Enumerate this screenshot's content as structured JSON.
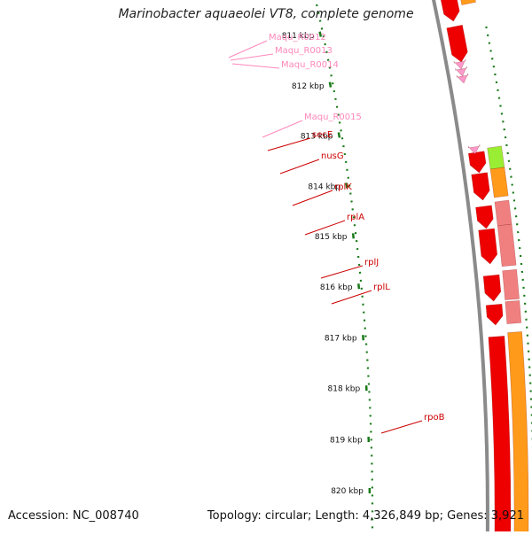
{
  "title": "Marinobacter aquaeolei VT8, complete genome",
  "accession": "Accession: NC_008740",
  "summary": "Topology: circular; Length: 4,326,849 bp; Genes: 3,921",
  "colors": {
    "backbone": "#8a8a8a",
    "ruler": "#1a7a1a",
    "gene": "#ee0000",
    "gene_pale": "#f08080",
    "trna": "#ff99cc",
    "label_gene": "#cc0000",
    "label_trna": "#ff88bb",
    "orange": "#ff9a1a",
    "green": "#99ee33"
  },
  "ruler_labels": [
    {
      "name": "tick-811",
      "text": "811 kbp"
    },
    {
      "name": "tick-812",
      "text": "812 kbp"
    },
    {
      "name": "tick-813",
      "text": "813 kbp"
    },
    {
      "name": "tick-814",
      "text": "814 kbp"
    },
    {
      "name": "tick-815",
      "text": "815 kbp"
    },
    {
      "name": "tick-816",
      "text": "816 kbp"
    },
    {
      "name": "tick-817",
      "text": "817 kbp"
    },
    {
      "name": "tick-818",
      "text": "818 kbp"
    },
    {
      "name": "tick-819",
      "text": "819 kbp"
    },
    {
      "name": "tick-820",
      "text": "820 kbp"
    }
  ],
  "feature_labels": [
    {
      "name": "label-maqu-r0012",
      "text": "Maqu_R0012",
      "type": "trna"
    },
    {
      "name": "label-maqu-r0013",
      "text": "Maqu_R0013",
      "type": "trna"
    },
    {
      "name": "label-maqu-r0014",
      "text": "Maqu_R0014",
      "type": "trna"
    },
    {
      "name": "label-maqu-r0015",
      "text": "Maqu_R0015",
      "type": "trna"
    },
    {
      "name": "label-sece",
      "text": "secE",
      "type": "gene"
    },
    {
      "name": "label-nusg",
      "text": "nusG",
      "type": "gene"
    },
    {
      "name": "label-rplk",
      "text": "rplK",
      "type": "gene"
    },
    {
      "name": "label-rpla",
      "text": "rplA",
      "type": "gene"
    },
    {
      "name": "label-rplj",
      "text": "rplJ",
      "type": "gene"
    },
    {
      "name": "label-rpll",
      "text": "rplL",
      "type": "gene"
    },
    {
      "name": "label-rpob",
      "text": "rpoB",
      "type": "gene"
    }
  ]
}
